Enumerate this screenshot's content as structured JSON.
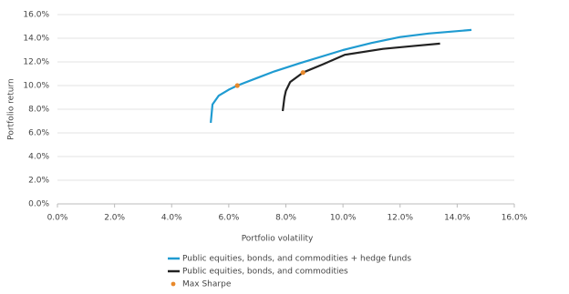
{
  "chart_data": {
    "type": "line",
    "x_label": "Portfolio volatility",
    "y_label": "Portfolio return",
    "xlim": [
      0,
      16
    ],
    "ylim": [
      0,
      16
    ],
    "xticks": [
      {
        "value": 0,
        "label": "0.0%"
      },
      {
        "value": 2,
        "label": "2.0%"
      },
      {
        "value": 4,
        "label": "4.0%"
      },
      {
        "value": 6,
        "label": "6.0%"
      },
      {
        "value": 8,
        "label": "8.0%"
      },
      {
        "value": 10,
        "label": "10.0%"
      },
      {
        "value": 12,
        "label": "12.0%"
      },
      {
        "value": 14,
        "label": "14.0%"
      },
      {
        "value": 16,
        "label": "16.0%"
      }
    ],
    "yticks": [
      {
        "value": 0,
        "label": "0.0%"
      },
      {
        "value": 2,
        "label": "2.0%"
      },
      {
        "value": 4,
        "label": "4.0%"
      },
      {
        "value": 6,
        "label": "6.0%"
      },
      {
        "value": 8,
        "label": "8.0%"
      },
      {
        "value": 10,
        "label": "10.0%"
      },
      {
        "value": 12,
        "label": "12.0%"
      },
      {
        "value": 14,
        "label": "14.0%"
      },
      {
        "value": 16,
        "label": "16.0%"
      }
    ],
    "grid": true,
    "series": [
      {
        "name": "Public equities, bonds, and commodities + hedge funds",
        "color": "#1f9bd1",
        "type": "line",
        "x": [
          5.37,
          5.43,
          5.65,
          6.0,
          6.3,
          7.0,
          7.6,
          8.5,
          10.0,
          11.0,
          12.0,
          13.0,
          14.5
        ],
        "values": [
          6.85,
          8.4,
          9.15,
          9.65,
          10.0,
          10.65,
          11.2,
          11.9,
          13.0,
          13.6,
          14.1,
          14.4,
          14.7
        ]
      },
      {
        "name": "Public equities, bonds, and commodities",
        "color": "#222222",
        "type": "line",
        "x": [
          7.89,
          7.95,
          8.0,
          8.15,
          8.6,
          9.3,
          10.06,
          11.4,
          12.5,
          13.4
        ],
        "values": [
          7.85,
          9.0,
          9.55,
          10.3,
          11.1,
          11.8,
          12.6,
          13.1,
          13.35,
          13.55
        ]
      },
      {
        "name": "Max Sharpe",
        "color": "#e8892b",
        "type": "scatter",
        "x": [
          6.3,
          8.6
        ],
        "values": [
          10.0,
          11.1
        ]
      }
    ]
  }
}
